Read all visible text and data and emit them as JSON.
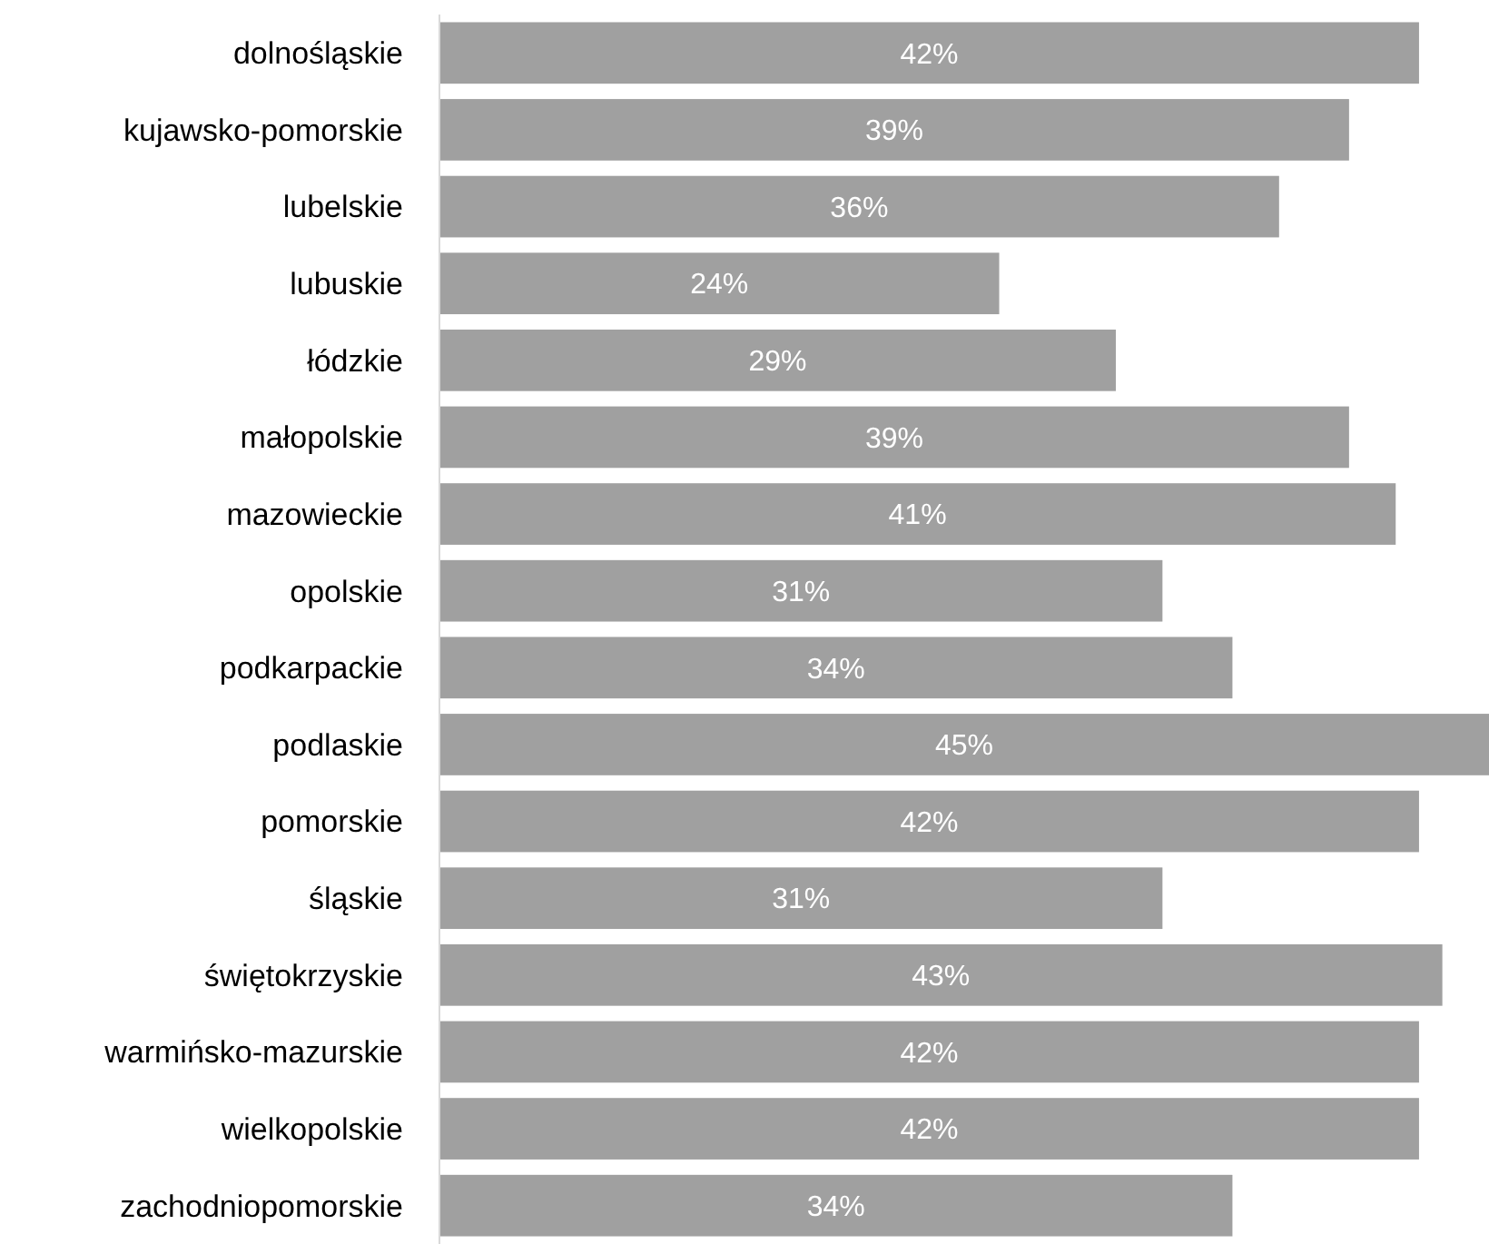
{
  "chart_data": {
    "type": "bar",
    "orientation": "horizontal",
    "categories": [
      "dolnośląskie",
      "kujawsko-pomorskie",
      "lubelskie",
      "lubuskie",
      "łódzkie",
      "małopolskie",
      "mazowieckie",
      "opolskie",
      "podkarpackie",
      "podlaskie",
      "pomorskie",
      "śląskie",
      "świętokrzyskie",
      "warmińsko-mazurskie",
      "wielkopolskie",
      "zachodniopomorskie"
    ],
    "values": [
      42,
      39,
      36,
      24,
      29,
      39,
      41,
      31,
      34,
      45,
      42,
      31,
      43,
      42,
      42,
      34
    ],
    "value_labels": [
      "42%",
      "39%",
      "36%",
      "24%",
      "29%",
      "39%",
      "41%",
      "31%",
      "34%",
      "45%",
      "42%",
      "31%",
      "43%",
      "42%",
      "42%",
      "34%"
    ],
    "color": "#a0a0a0"
  }
}
